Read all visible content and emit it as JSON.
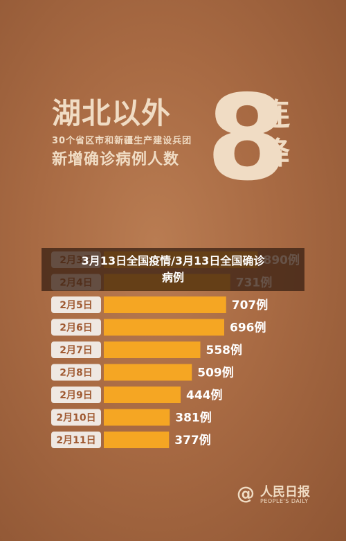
{
  "headline": {
    "line1": "湖北以外",
    "line2": "30个省区市和新疆生产建设兵团",
    "line3": "新增确诊病例人数",
    "big_number": "8",
    "lian": "连",
    "jiang": "降"
  },
  "caption": {
    "line1": "3月13日全国疫情/3月13日全国确诊",
    "line2": "病例"
  },
  "logo": {
    "icon": "@",
    "name": "人民日报",
    "sub": "PEOPLE'S DAILY"
  },
  "colors": {
    "bar": "#f5a623",
    "label_box": "#efe8e2",
    "label_text": "#a05a32",
    "value_text": "#ffffff"
  },
  "chart_data": {
    "type": "bar",
    "orientation": "horizontal",
    "categories": [
      "2月3日",
      "2月4日",
      "2月5日",
      "2月6日",
      "2月7日",
      "2月8日",
      "2月9日",
      "2月10日",
      "2月11日"
    ],
    "values": [
      890,
      731,
      707,
      696,
      558,
      509,
      444,
      381,
      377
    ],
    "value_labels": [
      "890例",
      "731例",
      "707例",
      "696例",
      "558例",
      "509例",
      "444例",
      "381例",
      "377例"
    ],
    "xlim": [
      0,
      1000
    ]
  }
}
